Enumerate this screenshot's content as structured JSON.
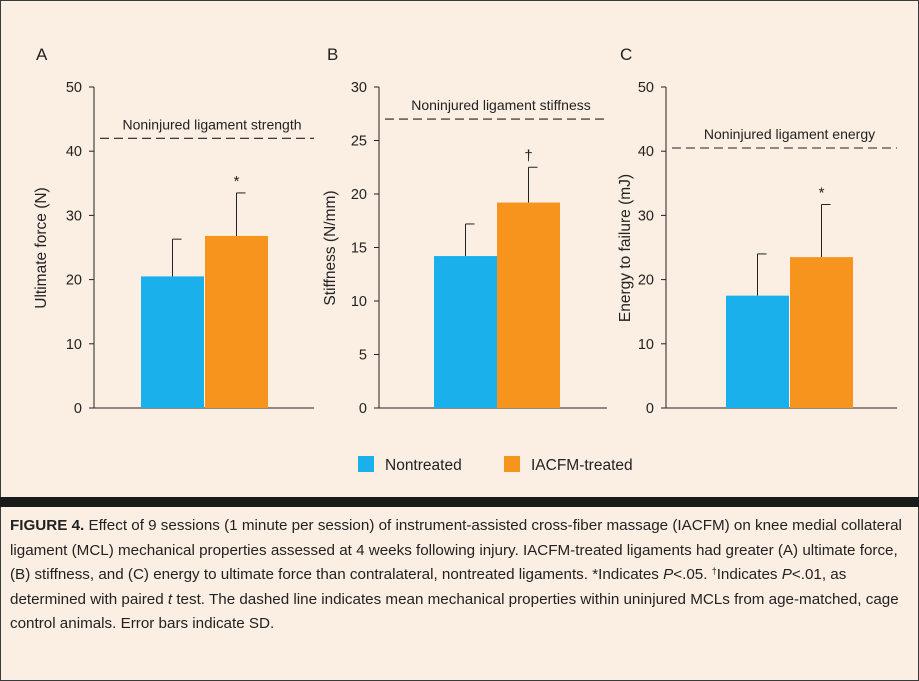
{
  "chart_data": [
    {
      "type": "bar",
      "panel_label": "A",
      "ylabel": "Ultimate force (N)",
      "ylim": [
        0,
        50
      ],
      "yticks": [
        0,
        10,
        20,
        30,
        40,
        50
      ],
      "series": [
        {
          "name": "Nontreated",
          "value": 20.5,
          "error": 5.8,
          "color": "#1ab0ec"
        },
        {
          "name": "IACFM-treated",
          "value": 26.8,
          "error": 6.7,
          "color": "#f7941d"
        }
      ],
      "significance_marker": "*",
      "reference_line": {
        "value": 42,
        "label": "Noninjured ligament strength"
      }
    },
    {
      "type": "bar",
      "panel_label": "B",
      "ylabel": "Stiffness (N/mm)",
      "ylim": [
        0,
        30
      ],
      "yticks": [
        0,
        5,
        10,
        15,
        20,
        25,
        30
      ],
      "series": [
        {
          "name": "Nontreated",
          "value": 14.2,
          "error": 3.0,
          "color": "#1ab0ec"
        },
        {
          "name": "IACFM-treated",
          "value": 19.2,
          "error": 3.3,
          "color": "#f7941d"
        }
      ],
      "significance_marker": "†",
      "reference_line": {
        "value": 27.0,
        "label": "Noninjured ligament stiffness"
      }
    },
    {
      "type": "bar",
      "panel_label": "C",
      "ylabel": "Energy to failure (mJ)",
      "ylim": [
        0,
        50
      ],
      "yticks": [
        0,
        10,
        20,
        30,
        40,
        50
      ],
      "series": [
        {
          "name": "Nontreated",
          "value": 17.5,
          "error": 6.5,
          "color": "#1ab0ec"
        },
        {
          "name": "IACFM-treated",
          "value": 23.5,
          "error": 8.2,
          "color": "#f7941d"
        }
      ],
      "significance_marker": "*",
      "reference_line": {
        "value": 40.5,
        "label": "Noninjured ligament energy"
      }
    }
  ],
  "legend": [
    {
      "label": "Nontreated",
      "color": "#1ab0ec"
    },
    {
      "label": "IACFM-treated",
      "color": "#f7941d"
    }
  ],
  "caption": {
    "label": "FIGURE 4.",
    "text_1": " Effect of 9 sessions (1 minute per session) of instrument-assisted cross-fiber massage (IACFM) on knee medial collateral ligament (MCL) mechanical properties assessed at 4 weeks following injury. IACFM-treated ligaments had greater (A) ultimate force, (B) stiffness, and (C) energy to ultimate force than contralateral, nontreated ligaments. *Indicates ",
    "p_symbol_1": "P",
    "text_2": "<.05. ",
    "dagger": "†",
    "text_3": "Indicates ",
    "p_symbol_2": "P",
    "text_4": "<.01, as determined with paired ",
    "t_symbol": "t",
    "text_5": " test. The dashed line indicates mean mechanical properties within uninjured MCLs from age-matched, cage control animals. Error bars indicate SD."
  }
}
